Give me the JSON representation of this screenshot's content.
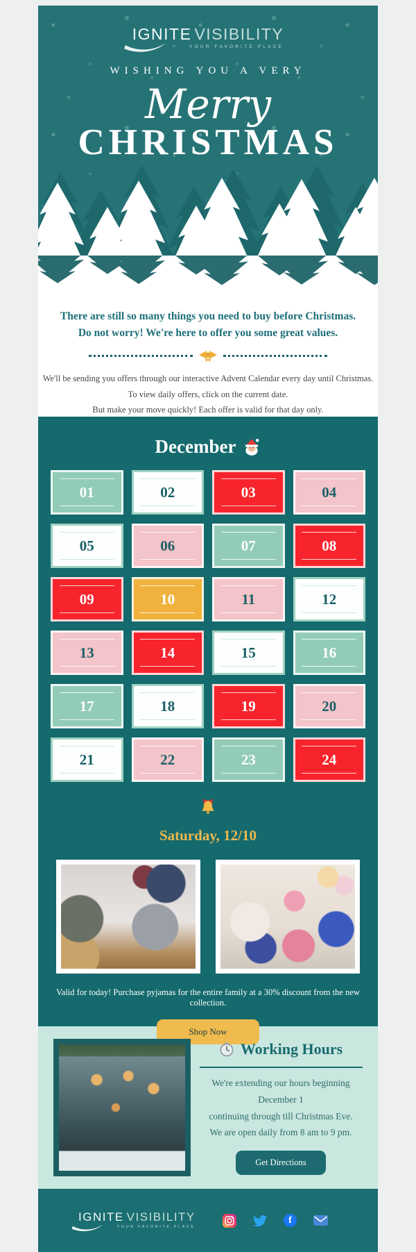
{
  "colors": {
    "hero_teal": "#267376",
    "calendar_teal": "#146a6d",
    "mint_bg": "#c9e7df",
    "footer_teal": "#1b6e71",
    "accent_gold": "#f0bb4e",
    "accent_red": "#f8242d",
    "cell_mint": "#92ccb9",
    "cell_pink": "#f3c4c9",
    "text_teal": "#1d6f79"
  },
  "header": {
    "logo_primary": "IGNITE",
    "logo_secondary": "VISIBILITY",
    "tagline": "YOUR FAVORITE PLACE"
  },
  "hero": {
    "kicker": "WISHING YOU A VERY",
    "script_word": "Merry",
    "title": "CHRISTMAS"
  },
  "intro": {
    "bold_line1": "There are still so many things you need to buy before Christmas.",
    "bold_line2": "Do not worry! We're here to offer you some great values.",
    "para_line1": "We'll be sending you offers through our interactive Advent Calendar every day until Christmas.",
    "para_line2": "To view daily offers, click on the current date.",
    "para_line3": "But make your move quickly!  Each offer is valid for that day only."
  },
  "calendar": {
    "month": "December",
    "days": [
      {
        "num": "01",
        "variant": "mint"
      },
      {
        "num": "02",
        "variant": "white"
      },
      {
        "num": "03",
        "variant": "red"
      },
      {
        "num": "04",
        "variant": "pink"
      },
      {
        "num": "05",
        "variant": "white"
      },
      {
        "num": "06",
        "variant": "pink"
      },
      {
        "num": "07",
        "variant": "mint"
      },
      {
        "num": "08",
        "variant": "red"
      },
      {
        "num": "09",
        "variant": "red"
      },
      {
        "num": "10",
        "variant": "gold"
      },
      {
        "num": "11",
        "variant": "pink"
      },
      {
        "num": "12",
        "variant": "white"
      },
      {
        "num": "13",
        "variant": "pink"
      },
      {
        "num": "14",
        "variant": "red"
      },
      {
        "num": "15",
        "variant": "white"
      },
      {
        "num": "16",
        "variant": "mint"
      },
      {
        "num": "17",
        "variant": "mint"
      },
      {
        "num": "18",
        "variant": "white"
      },
      {
        "num": "19",
        "variant": "red"
      },
      {
        "num": "20",
        "variant": "pink"
      },
      {
        "num": "21",
        "variant": "white"
      },
      {
        "num": "22",
        "variant": "pink"
      },
      {
        "num": "23",
        "variant": "mint"
      },
      {
        "num": "24",
        "variant": "red"
      }
    ]
  },
  "offer": {
    "date": "Saturday, 12/10",
    "caption": "Valid for today! Purchase pyjamas for the entire family at a 30% discount from the new collection.",
    "shop_button": "Shop Now",
    "photos": [
      "couple-in-pyjamas-on-bed",
      "family-opening-gifts"
    ]
  },
  "working_hours": {
    "title": "Working Hours",
    "line1": "We're extending our hours beginning December 1",
    "line2": "continuing through till Christmas Eve.",
    "line3": "We are open daily from 8 am to 9 pm.",
    "button": "Get Directions"
  },
  "footer": {
    "logo_primary": "IGNITE",
    "logo_secondary": "VISIBILITY",
    "tagline": "YOUR FAVORITE PLACE",
    "social": [
      "instagram",
      "twitter",
      "facebook",
      "email"
    ]
  }
}
